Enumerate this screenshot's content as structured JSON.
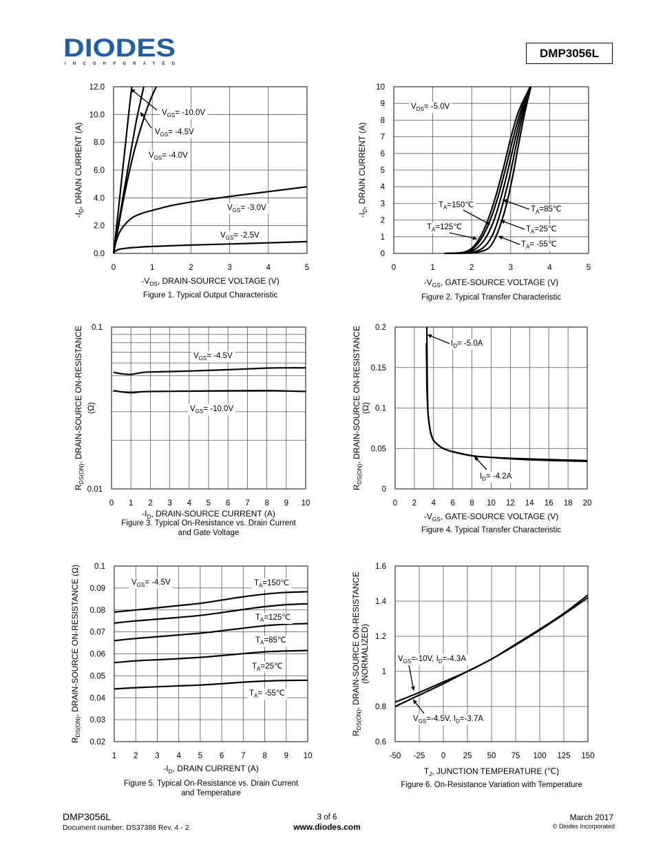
{
  "header": {
    "logo_text": "DIODES",
    "logo_sub": "INCORPORATED",
    "brand_color": "#1f5ea8",
    "part_number": "DMP3056L"
  },
  "footer": {
    "part": "DMP3056L",
    "doc": "Document number: DS37386  Rev. 4 - 2",
    "page": "3 of 6",
    "url": "www.diodes.com",
    "date": "March 2017",
    "copyright": "© Diodes Incorporated"
  },
  "chart_data": [
    {
      "id": "fig1",
      "type": "line",
      "title": "Figure 1. Typical Output Characteristic",
      "xlabel": {
        "pre": "-V",
        "sub": "DS",
        "post": ", DRAIN-SOURCE VOLTAGE (V)"
      },
      "ylabel": {
        "pre": "-I",
        "sub": "D",
        "post": ", DRAIN CURRENT (A)"
      },
      "xlim": [
        0,
        5
      ],
      "ylim": [
        0,
        12
      ],
      "xticks": [
        0,
        1,
        2,
        3,
        4,
        5
      ],
      "xtick_labels": [
        "0",
        "1",
        "2",
        "3",
        "4",
        "5"
      ],
      "yticks": [
        0,
        2,
        4,
        6,
        8,
        10,
        12
      ],
      "ytick_labels": [
        "0.0",
        "2.0",
        "4.0",
        "6.0",
        "8.0",
        "10.0",
        "12.0"
      ],
      "grid": true,
      "series": [
        {
          "name": "VGS=-10.0V",
          "x": [
            0,
            0.1,
            0.2,
            0.3,
            0.4,
            0.47
          ],
          "y": [
            0,
            2.5,
            5.1,
            7.7,
            10.3,
            12
          ]
        },
        {
          "name": "VGS=-4.5V",
          "x": [
            0,
            0.15,
            0.3,
            0.45,
            0.6,
            0.78
          ],
          "y": [
            0,
            2.5,
            5.0,
            7.4,
            9.7,
            12
          ]
        },
        {
          "name": "VGS=-4.0V",
          "x": [
            0,
            0.15,
            0.3,
            0.5,
            0.7,
            0.9,
            1.1
          ],
          "y": [
            0,
            2.3,
            4.5,
            7.0,
            9.0,
            10.7,
            12
          ]
        },
        {
          "name": "VGS=-3.0V",
          "x": [
            0,
            0.05,
            0.15,
            0.3,
            0.5,
            0.75,
            1,
            1.5,
            2,
            3,
            4,
            5
          ],
          "y": [
            0,
            0.7,
            1.5,
            2.1,
            2.6,
            2.9,
            3.1,
            3.45,
            3.7,
            4.1,
            4.45,
            4.8
          ]
        },
        {
          "name": "VGS=-2.5V",
          "x": [
            0,
            0.05,
            0.15,
            0.3,
            0.5,
            1,
            2,
            3,
            4,
            5
          ],
          "y": [
            0,
            0.18,
            0.3,
            0.36,
            0.42,
            0.5,
            0.6,
            0.68,
            0.76,
            0.85
          ]
        }
      ],
      "annotations": [
        {
          "pre": "V",
          "sub": "GS",
          "post": "= -10.0V"
        },
        {
          "pre": "V",
          "sub": "GS",
          "post": "= -4.5V"
        },
        {
          "pre": "V",
          "sub": "GS",
          "post": "= -4.0V"
        },
        {
          "pre": "V",
          "sub": "GS",
          "post": "= -3.0V"
        },
        {
          "pre": "V",
          "sub": "GS",
          "post": "= -2.5V"
        }
      ]
    },
    {
      "id": "fig2",
      "type": "line",
      "title": "Figure 2. Typical Transfer Characteristic",
      "xlabel": {
        "pre": "-V",
        "sub": "GS",
        "post": ", GATE-SOURCE VOLTAGE (V)"
      },
      "ylabel": {
        "pre": "-I",
        "sub": "D",
        "post": ", DRAIN CURRENT (A)"
      },
      "xlim": [
        0,
        5
      ],
      "ylim": [
        0,
        10
      ],
      "xticks": [
        0,
        1,
        2,
        3,
        4,
        5
      ],
      "xtick_labels": [
        "0",
        "1",
        "2",
        "3",
        "4",
        "5"
      ],
      "yticks": [
        0,
        1,
        2,
        3,
        4,
        5,
        6,
        7,
        8,
        9,
        10
      ],
      "ytick_labels": [
        "0",
        "1",
        "2",
        "3",
        "4",
        "5",
        "6",
        "7",
        "8",
        "9",
        "10"
      ],
      "grid": true,
      "series": [
        {
          "name": "TA=150°C",
          "x": [
            1.3,
            1.6,
            1.8,
            2.0,
            2.2,
            2.4,
            2.6,
            2.8,
            3.0,
            3.2,
            3.5
          ],
          "y": [
            0,
            0.02,
            0.08,
            0.3,
            0.9,
            1.9,
            3.3,
            5.0,
            6.9,
            8.5,
            10
          ]
        },
        {
          "name": "TA=125°C",
          "x": [
            1.35,
            1.7,
            1.9,
            2.05,
            2.25,
            2.45,
            2.65,
            2.85,
            3.05,
            3.25,
            3.5
          ],
          "y": [
            0,
            0.03,
            0.12,
            0.32,
            0.9,
            1.85,
            3.2,
            4.9,
            6.8,
            8.5,
            10
          ]
        },
        {
          "name": "TA=85°C",
          "x": [
            1.4,
            1.8,
            2.0,
            2.15,
            2.35,
            2.55,
            2.72,
            2.9,
            3.1,
            3.28,
            3.5
          ],
          "y": [
            0,
            0.04,
            0.15,
            0.35,
            0.9,
            1.85,
            3.1,
            4.7,
            6.7,
            8.4,
            10
          ]
        },
        {
          "name": "TA=25°C",
          "x": [
            1.5,
            1.9,
            2.1,
            2.3,
            2.5,
            2.65,
            2.8,
            2.98,
            3.15,
            3.32,
            3.52
          ],
          "y": [
            0,
            0.04,
            0.12,
            0.35,
            0.95,
            1.8,
            3.0,
            4.7,
            6.6,
            8.4,
            10
          ]
        },
        {
          "name": "TA=-55°C",
          "x": [
            1.6,
            2.0,
            2.25,
            2.45,
            2.6,
            2.75,
            2.9,
            3.05,
            3.2,
            3.35,
            3.52
          ],
          "y": [
            0,
            0.03,
            0.12,
            0.35,
            0.9,
            1.8,
            3.0,
            4.6,
            6.5,
            8.3,
            10
          ]
        }
      ],
      "annotations": [
        {
          "pre": "V",
          "sub": "DS",
          "post": "= -5.0V"
        },
        {
          "pre": "T",
          "sub": "A",
          "post": "=150℃"
        },
        {
          "pre": "T",
          "sub": "A",
          "post": "=125℃"
        },
        {
          "pre": "T",
          "sub": "A",
          "post": "=85℃"
        },
        {
          "pre": "T",
          "sub": "A",
          "post": "=25℃"
        },
        {
          "pre": "T",
          "sub": "A",
          "post": "= -55℃"
        }
      ]
    },
    {
      "id": "fig3",
      "type": "line",
      "title": "Figure 3. Typical On-Resistance vs. Drain Current",
      "title2": "and Gate Voltage",
      "xlabel": {
        "pre": "-I",
        "sub": "D",
        "post": ", DRAIN-SOURCE CURRENT (A)"
      },
      "ylabel": {
        "pre": "R",
        "sub": "DS(ON)",
        "post": ", DRAIN-SOURCE ON-RESISTANCE"
      },
      "ylabel2": "(Ω)",
      "xlim": [
        0,
        10
      ],
      "ylim": [
        0.01,
        0.1
      ],
      "yscale": "log",
      "xticks": [
        0,
        1,
        2,
        3,
        4,
        5,
        6,
        7,
        8,
        9,
        10
      ],
      "xtick_labels": [
        "0",
        "1",
        "2",
        "3",
        "4",
        "5",
        "6",
        "7",
        "8",
        "9",
        "10"
      ],
      "yticks": [
        0.01,
        0.1
      ],
      "ytick_labels": [
        "0.01",
        "0.1"
      ],
      "grid": true,
      "series": [
        {
          "name": "VGS=-4.5V",
          "x": [
            0.1,
            0.5,
            1,
            1.5,
            2,
            4,
            6,
            8,
            9,
            10
          ],
          "y": [
            0.0525,
            0.0515,
            0.051,
            0.0522,
            0.0528,
            0.0535,
            0.0545,
            0.0558,
            0.056,
            0.056
          ]
        },
        {
          "name": "VGS=-10.0V",
          "x": [
            0.1,
            0.5,
            1,
            1.5,
            2,
            4,
            6,
            8,
            9,
            10
          ],
          "y": [
            0.0405,
            0.0398,
            0.0393,
            0.0398,
            0.04,
            0.0402,
            0.0404,
            0.0405,
            0.0403,
            0.04
          ]
        }
      ],
      "annotations": [
        {
          "pre": "V",
          "sub": "GS",
          "post": "= -4.5V"
        },
        {
          "pre": "V",
          "sub": "GS",
          "post": "= -10.0V"
        }
      ]
    },
    {
      "id": "fig4",
      "type": "line",
      "title": "Figure 4. Typical Transfer Characteristic",
      "xlabel": {
        "pre": "-V",
        "sub": "GS",
        "post": ", GATE-SOURCE VOLTAGE (V)"
      },
      "ylabel": {
        "pre": "R",
        "sub": "DS(ON)",
        "post": ", DRAIN-SOURCE ON-RESISTANCE"
      },
      "ylabel2": "(Ω)",
      "xlim": [
        0,
        20
      ],
      "ylim": [
        0,
        0.2
      ],
      "xticks": [
        0,
        2,
        4,
        6,
        8,
        10,
        12,
        14,
        16,
        18,
        20
      ],
      "xtick_labels": [
        "0",
        "2",
        "4",
        "6",
        "8",
        "10",
        "12",
        "14",
        "16",
        "18",
        "20"
      ],
      "yticks": [
        0,
        0.05,
        0.1,
        0.15,
        0.2
      ],
      "ytick_labels": [
        "0",
        "0.05",
        "0.1",
        "0.15",
        "0.2"
      ],
      "grid": true,
      "series": [
        {
          "name": "ID=-5.0A",
          "x": [
            3.3,
            3.32,
            3.35,
            3.4,
            3.5,
            3.7,
            4,
            4.5,
            5,
            6,
            8,
            10,
            14,
            20
          ],
          "y": [
            0.2,
            0.17,
            0.13,
            0.1,
            0.085,
            0.07,
            0.06,
            0.054,
            0.05,
            0.046,
            0.041,
            0.039,
            0.037,
            0.035
          ]
        },
        {
          "name": "ID=-4.2A",
          "x": [
            3.25,
            3.28,
            3.32,
            3.4,
            3.5,
            3.7,
            4,
            4.5,
            5,
            6,
            8,
            10,
            14,
            20
          ],
          "y": [
            0.18,
            0.15,
            0.12,
            0.098,
            0.084,
            0.069,
            0.06,
            0.054,
            0.05,
            0.046,
            0.041,
            0.039,
            0.036,
            0.034
          ]
        }
      ],
      "annotations": [
        {
          "pre": "I",
          "sub": "D",
          "post": "= -5.0A"
        },
        {
          "pre": "I",
          "sub": "D",
          "post": "= -4.2A"
        }
      ]
    },
    {
      "id": "fig5",
      "type": "line",
      "title": "Figure 5. Typical On-Resistance vs. Drain Current",
      "title2": "and Temperature",
      "xlabel": {
        "pre": "-I",
        "sub": "D",
        "post": ", DRAIN CURRENT (A)"
      },
      "ylabel": {
        "pre": "R",
        "sub": "DS(ON)",
        "post": ",  DRAIN-SOURCE ON-RESISTANCE (Ω)"
      },
      "xlim": [
        1,
        10
      ],
      "ylim": [
        0.02,
        0.1
      ],
      "xticks": [
        1,
        2,
        3,
        4,
        5,
        6,
        7,
        8,
        9,
        10
      ],
      "xtick_labels": [
        "1",
        "2",
        "3",
        "4",
        "5",
        "6",
        "7",
        "8",
        "9",
        "10"
      ],
      "yticks": [
        0.02,
        0.03,
        0.04,
        0.05,
        0.06,
        0.07,
        0.08,
        0.09,
        0.1
      ],
      "ytick_labels": [
        "0.02",
        "0.03",
        "0.04",
        "0.05",
        "0.06",
        "0.07",
        "0.08",
        "0.09",
        "0.1"
      ],
      "grid": true,
      "series": [
        {
          "name": "TA=150°C",
          "x": [
            1,
            2,
            3,
            4,
            5,
            6,
            7,
            8,
            9,
            10
          ],
          "y": [
            0.079,
            0.08,
            0.081,
            0.082,
            0.083,
            0.0845,
            0.086,
            0.0872,
            0.088,
            0.0883
          ]
        },
        {
          "name": "TA=125°C",
          "x": [
            1,
            2,
            3,
            4,
            5,
            6,
            7,
            8,
            9,
            10
          ],
          "y": [
            0.074,
            0.075,
            0.0758,
            0.0766,
            0.0775,
            0.0788,
            0.0802,
            0.0815,
            0.0824,
            0.0828
          ]
        },
        {
          "name": "TA=85°C",
          "x": [
            1,
            2,
            3,
            4,
            5,
            6,
            7,
            8,
            9,
            10
          ],
          "y": [
            0.066,
            0.067,
            0.0678,
            0.0686,
            0.0694,
            0.0705,
            0.0717,
            0.0728,
            0.0735,
            0.0738
          ]
        },
        {
          "name": "TA=25°C",
          "x": [
            1,
            2,
            3,
            4,
            5,
            6,
            7,
            8,
            9,
            10
          ],
          "y": [
            0.056,
            0.0568,
            0.0573,
            0.0578,
            0.0584,
            0.0592,
            0.0601,
            0.0609,
            0.0613,
            0.0615
          ]
        },
        {
          "name": "TA=-55°C",
          "x": [
            1,
            2,
            3,
            4,
            5,
            6,
            7,
            8,
            9,
            10
          ],
          "y": [
            0.044,
            0.0446,
            0.045,
            0.0454,
            0.0458,
            0.0464,
            0.0471,
            0.0476,
            0.0479,
            0.048
          ]
        }
      ],
      "annotations": [
        {
          "pre": "V",
          "sub": "GS",
          "post": "= -4.5V"
        },
        {
          "pre": "T",
          "sub": "A",
          "post": "=150℃"
        },
        {
          "pre": "T",
          "sub": "A",
          "post": "=125℃"
        },
        {
          "pre": "T",
          "sub": "A",
          "post": "=85℃"
        },
        {
          "pre": "T",
          "sub": "A",
          "post": "=25℃"
        },
        {
          "pre": "T",
          "sub": "A",
          "post": "= -55℃"
        }
      ]
    },
    {
      "id": "fig6",
      "type": "line",
      "title": "Figure 6. On-Resistance Variation with Temperature",
      "xlabel": {
        "pre": "T",
        "sub": "J",
        "post": ", JUNCTION TEMPERATURE (℃)"
      },
      "ylabel": {
        "pre": "R",
        "sub": "DS(ON)",
        "post": ", DRAIN-SOURCE ON-RESISTANCE"
      },
      "ylabel2": "(NORMALIZED)",
      "xlim": [
        -50,
        150
      ],
      "ylim": [
        0.6,
        1.6
      ],
      "xticks": [
        -50,
        -25,
        0,
        25,
        50,
        75,
        100,
        125,
        150
      ],
      "xtick_labels": [
        "-50",
        "-25",
        "0",
        "25",
        "50",
        "75",
        "100",
        "125",
        "150"
      ],
      "yticks": [
        0.6,
        0.8,
        1.0,
        1.2,
        1.4,
        1.6
      ],
      "ytick_labels": [
        "0.6",
        "0.8",
        "1",
        "1.2",
        "1.4",
        "1.6"
      ],
      "grid": true,
      "series": [
        {
          "name": "VGS=-10V, ID=-4.3A",
          "x": [
            -50,
            -25,
            0,
            25,
            50,
            75,
            100,
            125,
            150
          ],
          "y": [
            0.825,
            0.88,
            0.94,
            1.0,
            1.07,
            1.15,
            1.235,
            1.325,
            1.42
          ]
        },
        {
          "name": "VGS=-4.5V, ID=-3.7A",
          "x": [
            -50,
            -25,
            0,
            25,
            50,
            75,
            100,
            125,
            150
          ],
          "y": [
            0.8,
            0.865,
            0.93,
            1.0,
            1.07,
            1.155,
            1.24,
            1.33,
            1.435
          ]
        }
      ],
      "annotations": [
        {
          "pre": "V",
          "sub": "GS",
          "post": "=-10V, I",
          "sub2": "D",
          "post2": "=-4.3A"
        },
        {
          "pre": "V",
          "sub": "GS",
          "post": "=-4.5V, I",
          "sub2": "D",
          "post2": "=-3.7A"
        }
      ]
    }
  ]
}
